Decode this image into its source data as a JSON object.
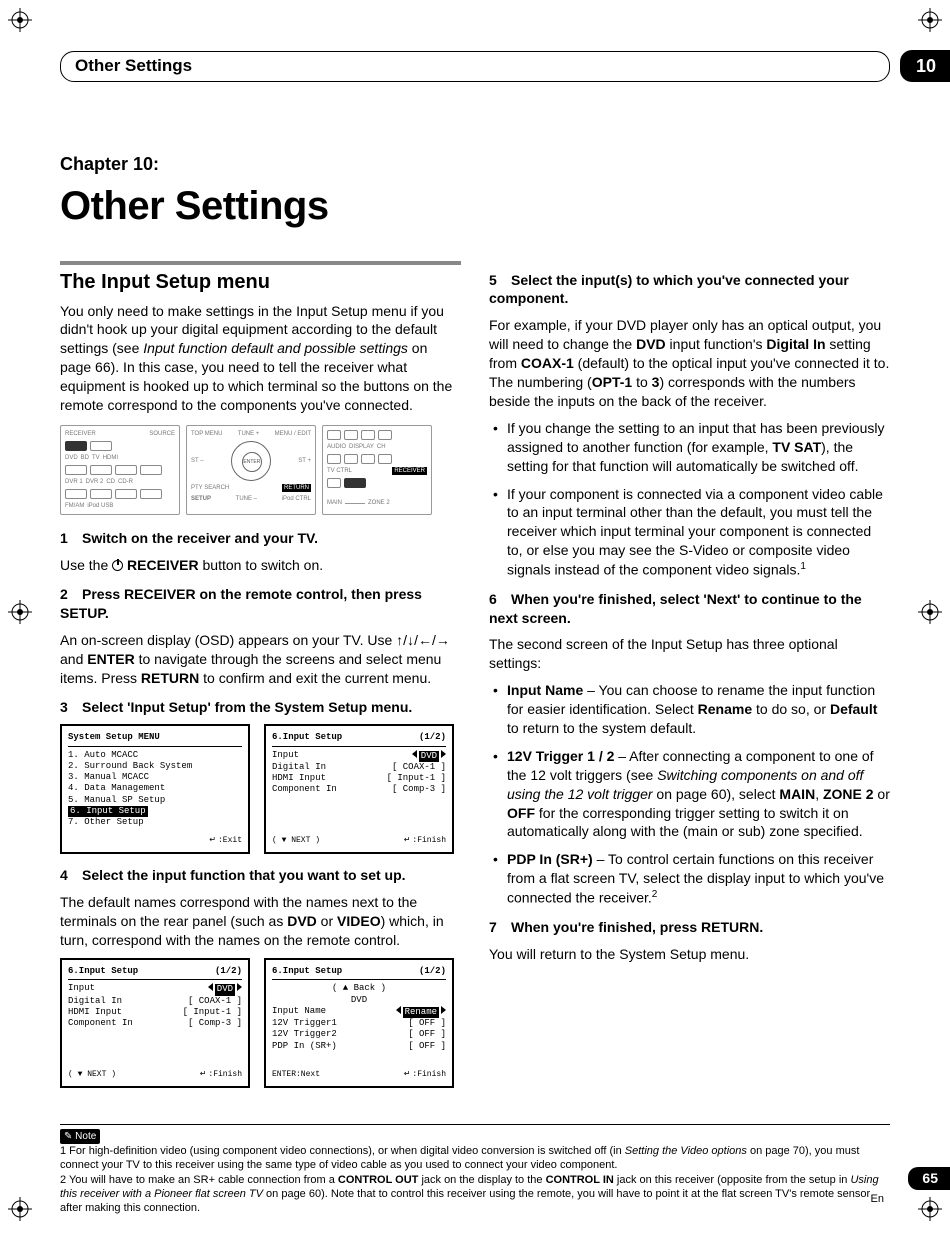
{
  "chapter_tab": "10",
  "header_title": "Other Settings",
  "chapter_label": "Chapter 10:",
  "chapter_title": "Other Settings",
  "page_number": "65",
  "page_lang": "En",
  "colors": {
    "text": "#000000",
    "bg": "#ffffff",
    "rule": "#888888",
    "diagram_border": "#999999"
  },
  "left": {
    "section_title": "The Input Setup menu",
    "intro_a": "You only need to make settings in the Input Setup menu if you didn't hook up your digital equipment according to the default settings (see ",
    "intro_ital": "Input function default and possible settings",
    "intro_b": " on page 66). In this case, you need to tell the receiver what equipment is hooked up to which terminal so the buttons on the remote correspond to the components you've connected.",
    "remote": {
      "left_label": "RECEIVER",
      "src_label": "SOURCE",
      "row1": [
        "DVD",
        "BD",
        "TV",
        "HDMI"
      ],
      "row2": [
        "DVR 1",
        "DVR 2",
        "CD",
        "CD-R"
      ],
      "row3": [
        "FM/AM",
        "",
        "iPod USB",
        ""
      ],
      "mid_top": [
        "",
        "ERF",
        "TUNE +",
        "TOOLS"
      ],
      "mid_topL": "TOP MENU",
      "mid_topR": "MENU / EDIT",
      "mid_left": "ST –",
      "mid_center": "ENTER",
      "mid_right": "ST +",
      "mid_botL": "PTY SEARCH",
      "mid_botR": "RETURN",
      "mid_bot": [
        "SETUP",
        "TUNE –",
        "iPod CTRL"
      ],
      "right_top": [
        "◄◄",
        "▮▮",
        "■",
        "►►"
      ],
      "right_r2": [
        "AUDIO",
        "DISPLAY",
        "CH"
      ],
      "right_r2b": [
        "–",
        "+"
      ],
      "right_r3": "TV CTRL",
      "right_r3b": "RECEIVER",
      "right_bot": [
        "MAIN",
        "ZONE 2"
      ]
    },
    "step1_head": "Switch on the receiver and your TV.",
    "step1_body_a": "Use the ",
    "step1_body_b": " RECEIVER",
    "step1_body_c": " button to switch on.",
    "step2_head": "Press RECEIVER on the remote control, then press SETUP.",
    "step2_body_a": "An on-screen display (OSD) appears on your TV. Use ",
    "step2_body_b": " and ",
    "step2_body_c": "ENTER",
    "step2_body_d": " to navigate through the screens and select menu items. Press ",
    "step2_body_e": "RETURN",
    "step2_body_f": " to confirm and exit the current menu.",
    "step3_head": "Select 'Input Setup' from the System Setup menu.",
    "osd1": {
      "title": "System Setup MENU",
      "items": [
        "1. Auto MCACC",
        "2. Surround Back System",
        "3. Manual MCACC",
        "4. Data Management",
        "5. Manual SP Setup",
        "6. Input Setup",
        "7. Other Setup"
      ],
      "highlight_index": 5,
      "foot_right": ":Exit"
    },
    "osd2": {
      "title": "6.Input Setup",
      "page": "(1/2)",
      "rows": [
        {
          "k": "Input",
          "v": "DVD",
          "hl": true,
          "arrows": true
        },
        {
          "k": "Digital In",
          "v": "COAX-1"
        },
        {
          "k": "HDMI Input",
          "v": "Input-1"
        },
        {
          "k": "Component In",
          "v": "Comp-3"
        }
      ],
      "foot_left": "( ▼ NEXT )",
      "foot_right": ":Finish"
    },
    "step4_head": "Select the input function that you want to set up.",
    "step4_body_a": "The default names correspond with the names next to the terminals on the rear panel (such as ",
    "step4_body_b": "DVD",
    "step4_body_c": " or ",
    "step4_body_d": "VIDEO",
    "step4_body_e": ") which, in turn, correspond with the names on the remote control.",
    "osd3": {
      "title": "6.Input Setup",
      "page": "(1/2)",
      "rows": [
        {
          "k": "Input",
          "v": "DVD",
          "hl": true,
          "arrows": true
        },
        {
          "k": "Digital In",
          "v": "COAX-1"
        },
        {
          "k": "HDMI Input",
          "v": "Input-1"
        },
        {
          "k": "Component In",
          "v": "Comp-3"
        }
      ],
      "foot_left": "( ▼ NEXT )",
      "foot_right": ":Finish"
    },
    "osd4": {
      "title": "6.Input Setup",
      "page": "(1/2)",
      "back": "( ▲ Back )",
      "sub": "DVD",
      "rows": [
        {
          "k": "Input Name",
          "v": "Rename",
          "hl": true,
          "arrows": true
        },
        {
          "k": "12V Trigger1",
          "v": "OFF"
        },
        {
          "k": "12V Trigger2",
          "v": "OFF"
        },
        {
          "k": "PDP In (SR+)",
          "v": "OFF"
        }
      ],
      "foot_left": "ENTER:Next",
      "foot_right": ":Finish"
    }
  },
  "right": {
    "step5_head": "Select the input(s) to which you've connected your component.",
    "step5_body_a": "For example, if your DVD player only has an optical output, you will need to change the ",
    "step5_body_b": "DVD",
    "step5_body_c": " input function's ",
    "step5_body_d": "Digital In",
    "step5_body_e": " setting from ",
    "step5_body_f": "COAX-1",
    "step5_body_g": " (default) to the optical input you've connected it to. The numbering (",
    "step5_body_h": "OPT-1",
    "step5_body_i": " to ",
    "step5_body_j": "3",
    "step5_body_k": ") corresponds with the numbers beside the inputs on the back firstback of the receiver.",
    "step5_body_k_fix": ") corresponds with the numbers beside the inputs on the back of the receiver.",
    "bullet5a_a": "If you change the setting to an input that has been previously assigned to another function (for example, ",
    "bullet5a_b": "TV SAT",
    "bullet5a_c": "), the setting for that function will automatically be switched off.",
    "bullet5b_a": "If your component is connected via a component video cable to an input terminal other than the default, you must tell the receiver which input terminal your component is connected to, or else you may see the S-Video or composite video signals instead of the component video signals.",
    "bullet5b_sup": "1",
    "step6_head": "When you're finished, select 'Next' to continue to the next screen.",
    "step6_body": "The second screen of the Input Setup has three optional settings:",
    "bullet6a_b": "Input Name",
    "bullet6a_t": " – You can choose to rename the input function for easier identification. Select ",
    "bullet6a_b2": "Rename",
    "bullet6a_t2": " to do so, or ",
    "bullet6a_b3": "Default",
    "bullet6a_t3": " to return to the system default.",
    "bullet6b_b": "12V Trigger 1 / 2",
    "bullet6b_t": " – After connecting a component to one of the 12 volt triggers (see ",
    "bullet6b_i": "Switching components on and off using the 12 volt trigger",
    "bullet6b_t2": " on page 60), select ",
    "bullet6b_b2": "MAIN",
    "bullet6b_t3": ", ",
    "bullet6b_b3": "ZONE 2",
    "bullet6b_t4": " or ",
    "bullet6b_b4": "OFF",
    "bullet6b_t5": " for the corresponding trigger setting to switch it on automatically along with the (main or sub) zone specified.",
    "bullet6c_b": "PDP In (SR+)",
    "bullet6c_t": " – To control certain functions on this receiver from a flat screen TV, select the display input to which you've connected the receiver.",
    "bullet6c_sup": "2",
    "step7_head": "When you're finished, press RETURN.",
    "step7_body": "You will return to the System Setup menu."
  },
  "footnotes": {
    "label": "Note",
    "n1_a": "1 For high-definition video (using component video connections), or when digital video conversion is switched off (in ",
    "n1_i": "Setting the Video options",
    "n1_b": " on page 70), you must connect your TV to this receiver using the same type of video cable as you used to connect your video component.",
    "n2_a": "2 You will have to make an SR+ cable connection from a ",
    "n2_b1": "CONTROL OUT",
    "n2_b": " jack on the display to the ",
    "n2_b2": "CONTROL IN",
    "n2_c": " jack on this receiver (opposite from the setup in ",
    "n2_i": "Using this receiver with a Pioneer flat screen TV",
    "n2_d": " on page 60). Note that to control this receiver using the remote, you will have to point it at the flat screen TV's remote sensor after making this connection."
  }
}
